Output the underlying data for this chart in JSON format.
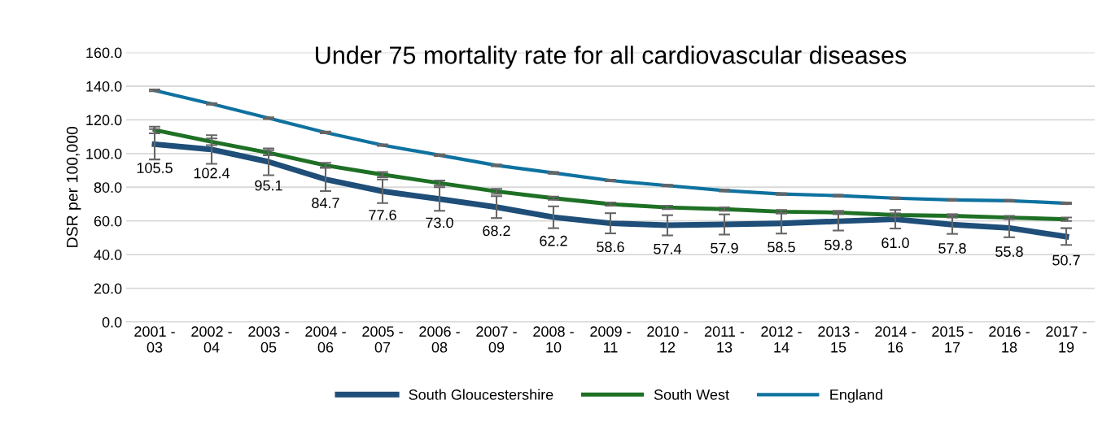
{
  "chart_data": {
    "type": "line",
    "title": "Under 75 mortality rate for all cardiovascular diseases",
    "ylabel": "DSR per 100,000",
    "categories": [
      "2001 -\n03",
      "2002 -\n04",
      "2003 -\n05",
      "2004 -\n06",
      "2005 -\n07",
      "2006 -\n08",
      "2007 -\n09",
      "2008 -\n10",
      "2009 -\n11",
      "2010 -\n12",
      "2011 -\n13",
      "2012 -\n14",
      "2013 -\n15",
      "2014 -\n16",
      "2015 -\n17",
      "2016 -\n18",
      "2017 -\n19"
    ],
    "series": [
      {
        "name": "South Gloucestershire",
        "color": "#1f4e79",
        "values": [
          105.5,
          102.4,
          95.1,
          84.7,
          77.6,
          73.0,
          68.2,
          62.2,
          58.6,
          57.4,
          57.9,
          58.5,
          59.8,
          61.0,
          57.8,
          55.8,
          50.7
        ],
        "errors": [
          9,
          8.5,
          8,
          7,
          7,
          7,
          6.5,
          6.5,
          6,
          6,
          6,
          6,
          5.5,
          5.5,
          5.5,
          5.5,
          5
        ],
        "value_labels": [
          "105.5",
          "102.4",
          "95.1",
          "84.7",
          "77.6",
          "73.0",
          "68.2",
          "62.2",
          "58.6",
          "57.4",
          "57.9",
          "58.5",
          "59.8",
          "61.0",
          "57.8",
          "55.8",
          "50.7"
        ]
      },
      {
        "name": "South West",
        "color": "#1e7025",
        "values": [
          114,
          107,
          100.5,
          93,
          87.5,
          82.5,
          77.5,
          73.5,
          70,
          68,
          67,
          65.5,
          65,
          63.5,
          63,
          62,
          61
        ],
        "errors": [
          2,
          2,
          1.5,
          1.5,
          1.5,
          1.5,
          1.5,
          1,
          1,
          1,
          1,
          1,
          1,
          1,
          1,
          1,
          1
        ]
      },
      {
        "name": "England",
        "color": "#0e72a0",
        "values": [
          137.5,
          129.5,
          121,
          112.5,
          105,
          99,
          93,
          88.5,
          84,
          81,
          78,
          76,
          75,
          73.5,
          72.5,
          72,
          70.5
        ],
        "errors": [
          0.5,
          0.5,
          0.5,
          0.5,
          0.5,
          0.5,
          0.5,
          0.5,
          0.5,
          0.5,
          0.5,
          0.5,
          0.5,
          0.5,
          0.5,
          0.5,
          0.5
        ]
      }
    ],
    "ylim": [
      0,
      160
    ],
    "yticks": [
      {
        "value": 0,
        "label": "0.0"
      },
      {
        "value": 20,
        "label": "20.0"
      },
      {
        "value": 40,
        "label": "40.0"
      },
      {
        "value": 60,
        "label": "60.0"
      },
      {
        "value": 80,
        "label": "80.0"
      },
      {
        "value": 100,
        "label": "100.0"
      },
      {
        "value": 120,
        "label": "120.0"
      },
      {
        "value": 140,
        "label": "140.0"
      },
      {
        "value": 160,
        "label": "160.0"
      }
    ],
    "grid": "y",
    "legend": "bottom",
    "marker": "none",
    "line_style": "solid"
  }
}
